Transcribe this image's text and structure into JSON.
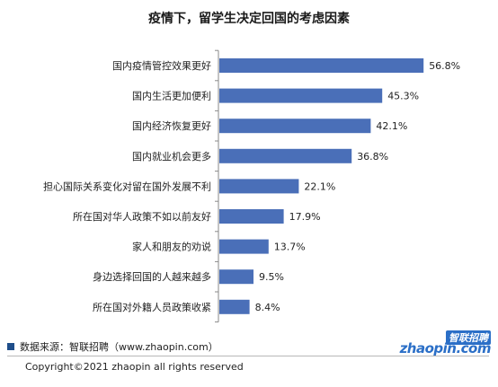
{
  "chart_data": {
    "type": "bar",
    "orientation": "horizontal",
    "title": "疫情下，留学生决定回国的考虑因素",
    "categories": [
      "国内疫情管控效果更好",
      "国内生活更加便利",
      "国内经济恢复更好",
      "国内就业机会更多",
      "担心国际关系变化对留在国外发展不利",
      "所在国对华人政策不如以前友好",
      "家人和朋友的劝说",
      "身边选择回国的人越来越多",
      "所在国对外籍人员政策收紧"
    ],
    "values": [
      56.8,
      45.3,
      42.1,
      36.8,
      22.1,
      17.9,
      13.7,
      9.5,
      8.4
    ],
    "value_labels": [
      "56.8%",
      "45.3%",
      "42.1%",
      "36.8%",
      "22.1%",
      "17.9%",
      "13.7%",
      "9.5%",
      "8.4%"
    ],
    "xlim": [
      0,
      60
    ],
    "bar_color": "#4a6fb8",
    "grid": false,
    "legend": "none"
  },
  "footer": {
    "source": "数据来源：智联招聘（www.zhaopin.com）",
    "copyright": "Copyright©2021 zhaopin all rights reserved"
  },
  "logo": {
    "cn": "智联招聘",
    "en": "zhaopin.com"
  }
}
